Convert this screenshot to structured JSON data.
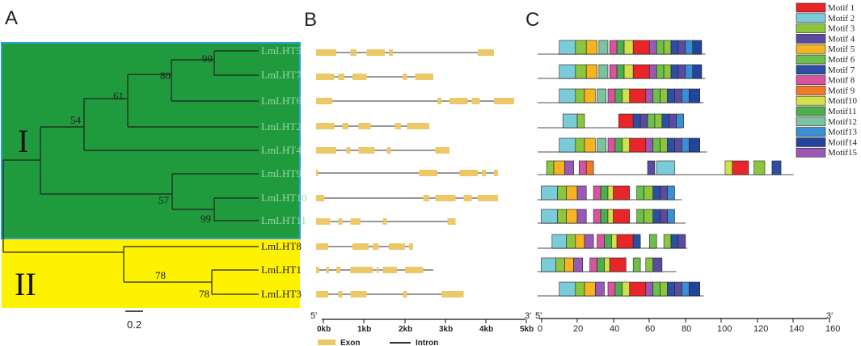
{
  "panels": {
    "a": "A",
    "b": "B",
    "c": "C"
  },
  "clades": {
    "one": "I",
    "two": "II"
  },
  "colors": {
    "clade1": "#1f9a3c",
    "clade1_border": "#2aa0d8",
    "clade2": "#fff200",
    "exon": "#ecc867",
    "intron": "#777777"
  },
  "genes": [
    "LmLHT5",
    "LmLHT7",
    "LmLHT6",
    "LmLHT2",
    "LmLHT4",
    "LmLHT9",
    "LmLHT10",
    "LmLHT11",
    "LmLHT8",
    "LmLHT1",
    "LmLHT3"
  ],
  "bootstrap": [
    "99",
    "80",
    "61",
    "54",
    "57",
    "99",
    "78",
    "78"
  ],
  "scale_bar": "0.2",
  "gene_structure": {
    "axis_ticks": [
      "0kb",
      "1kb",
      "2kb",
      "3kb",
      "4kb",
      "5kb"
    ],
    "axis_start": "5'",
    "axis_end": "3'",
    "legend_exon": "Exon",
    "legend_intron": "Intron",
    "units": "kb",
    "structures": [
      {
        "length": 4.4,
        "exons": [
          [
            0,
            0.5
          ],
          [
            0.85,
            1.0
          ],
          [
            1.25,
            1.7
          ],
          [
            1.8,
            1.9
          ],
          [
            4.0,
            4.4
          ]
        ]
      },
      {
        "length": 2.9,
        "exons": [
          [
            0,
            0.45
          ],
          [
            0.55,
            0.7
          ],
          [
            0.9,
            1.25
          ],
          [
            2.15,
            2.25
          ],
          [
            2.45,
            2.9
          ]
        ]
      },
      {
        "length": 4.9,
        "exons": [
          [
            0,
            0.4
          ],
          [
            3.0,
            3.1
          ],
          [
            3.3,
            3.75
          ],
          [
            3.85,
            4.05
          ],
          [
            4.4,
            4.9
          ]
        ]
      },
      {
        "length": 2.8,
        "exons": [
          [
            0,
            0.45
          ],
          [
            0.65,
            0.8
          ],
          [
            1.05,
            1.35
          ],
          [
            1.95,
            2.1
          ],
          [
            2.25,
            2.8
          ]
        ]
      },
      {
        "length": 3.3,
        "exons": [
          [
            0,
            0.5
          ],
          [
            0.75,
            0.85
          ],
          [
            1.05,
            1.45
          ],
          [
            1.75,
            1.85
          ],
          [
            2.95,
            3.3
          ]
        ]
      },
      {
        "length": 4.5,
        "exons": [
          [
            0,
            0.05
          ],
          [
            2.55,
            3.0
          ],
          [
            3.55,
            4.0
          ],
          [
            4.1,
            4.2
          ],
          [
            4.4,
            4.5
          ]
        ]
      },
      {
        "length": 4.5,
        "exons": [
          [
            0,
            0.2
          ],
          [
            2.65,
            2.8
          ],
          [
            2.95,
            3.45
          ],
          [
            3.65,
            3.85
          ],
          [
            4.0,
            4.5
          ]
        ]
      },
      {
        "length": 3.45,
        "exons": [
          [
            0,
            0.35
          ],
          [
            0.55,
            0.65
          ],
          [
            0.85,
            1.1
          ],
          [
            1.65,
            1.75
          ],
          [
            3.25,
            3.45
          ]
        ]
      },
      {
        "length": 2.4,
        "exons": [
          [
            0,
            0.3
          ],
          [
            0.9,
            1.3
          ],
          [
            1.4,
            1.55
          ],
          [
            1.8,
            2.2
          ],
          [
            2.3,
            2.4
          ]
        ]
      },
      {
        "length": 2.9,
        "exons": [
          [
            0,
            0.08
          ],
          [
            0.25,
            0.32
          ],
          [
            0.5,
            0.6
          ],
          [
            0.85,
            1.4
          ],
          [
            1.5,
            1.55
          ],
          [
            1.65,
            2.0
          ],
          [
            2.2,
            2.65
          ]
        ]
      },
      {
        "length": 3.65,
        "exons": [
          [
            0,
            0.3
          ],
          [
            0.55,
            0.65
          ],
          [
            0.85,
            1.25
          ],
          [
            2.15,
            2.25
          ],
          [
            3.1,
            3.65
          ]
        ]
      }
    ]
  },
  "motif_analysis": {
    "axis_ticks": [
      "0",
      "20",
      "40",
      "60",
      "80",
      "100",
      "120",
      "140",
      "160"
    ],
    "axis_start": "5'",
    "axis_end": "3'",
    "motifs": [
      {
        "name": "Motif 1",
        "color": "#e8262a"
      },
      {
        "name": "Motif 2",
        "color": "#79ccd8"
      },
      {
        "name": "Motif 3",
        "color": "#8cc63e"
      },
      {
        "name": "Motif 4",
        "color": "#5b4aa0"
      },
      {
        "name": "Motif 5",
        "color": "#f6b420"
      },
      {
        "name": "Motif 6",
        "color": "#6cbf4a"
      },
      {
        "name": "Motif 7",
        "color": "#2c4fa3"
      },
      {
        "name": "Motif 8",
        "color": "#d9539e"
      },
      {
        "name": "Motif 9",
        "color": "#f07a26"
      },
      {
        "name": "Motif10",
        "color": "#d4e04a"
      },
      {
        "name": "Motif11",
        "color": "#4cae4c"
      },
      {
        "name": "Motif12",
        "color": "#7bc3a0"
      },
      {
        "name": "Motif13",
        "color": "#3a8fd2"
      },
      {
        "name": "Motif14",
        "color": "#24439a"
      },
      {
        "name": "Motif15",
        "color": "#9b59b6"
      }
    ],
    "sequences": [
      {
        "length": 93,
        "blocks": [
          [
            12,
            21,
            2
          ],
          [
            21,
            27,
            3
          ],
          [
            27,
            33,
            5
          ],
          [
            34,
            39,
            12
          ],
          [
            40,
            44,
            8
          ],
          [
            44,
            48,
            11
          ],
          [
            48,
            53,
            10
          ],
          [
            53,
            62,
            1
          ],
          [
            62,
            66,
            15
          ],
          [
            66,
            70,
            6
          ],
          [
            70,
            74,
            3
          ],
          [
            74,
            78,
            7
          ],
          [
            78,
            82,
            4
          ],
          [
            82,
            86,
            13
          ],
          [
            86,
            91,
            14
          ]
        ]
      },
      {
        "length": 93,
        "blocks": [
          [
            12,
            21,
            2
          ],
          [
            21,
            27,
            3
          ],
          [
            27,
            33,
            5
          ],
          [
            34,
            39,
            12
          ],
          [
            40,
            44,
            8
          ],
          [
            44,
            48,
            11
          ],
          [
            48,
            53,
            10
          ],
          [
            53,
            62,
            1
          ],
          [
            62,
            66,
            15
          ],
          [
            66,
            70,
            6
          ],
          [
            70,
            74,
            3
          ],
          [
            74,
            78,
            7
          ],
          [
            78,
            82,
            4
          ],
          [
            82,
            86,
            13
          ],
          [
            86,
            91,
            14
          ]
        ]
      },
      {
        "length": 92,
        "blocks": [
          [
            12,
            21,
            2
          ],
          [
            21,
            26,
            3
          ],
          [
            26,
            32,
            5
          ],
          [
            33,
            38,
            12
          ],
          [
            39,
            43,
            8
          ],
          [
            43,
            47,
            11
          ],
          [
            47,
            51,
            10
          ],
          [
            51,
            60,
            1
          ],
          [
            60,
            64,
            15
          ],
          [
            64,
            68,
            6
          ],
          [
            68,
            72,
            3
          ],
          [
            72,
            76,
            7
          ],
          [
            76,
            80,
            4
          ],
          [
            80,
            84,
            13
          ],
          [
            84,
            90,
            14
          ]
        ]
      },
      {
        "length": 80,
        "blocks": [
          [
            14,
            22,
            2
          ],
          [
            22,
            26,
            3
          ],
          [
            45,
            53,
            1
          ],
          [
            53,
            57,
            7
          ],
          [
            57,
            61,
            4
          ],
          [
            61,
            65,
            6
          ],
          [
            65,
            69,
            3
          ],
          [
            69,
            73,
            7
          ],
          [
            73,
            77,
            4
          ],
          [
            77,
            81,
            13
          ]
        ]
      },
      {
        "length": 94,
        "blocks": [
          [
            12,
            21,
            2
          ],
          [
            21,
            26,
            3
          ],
          [
            26,
            32,
            5
          ],
          [
            33,
            38,
            12
          ],
          [
            39,
            43,
            8
          ],
          [
            43,
            47,
            11
          ],
          [
            47,
            51,
            10
          ],
          [
            51,
            60,
            1
          ],
          [
            60,
            64,
            15
          ],
          [
            64,
            68,
            6
          ],
          [
            68,
            72,
            3
          ],
          [
            72,
            76,
            7
          ],
          [
            76,
            80,
            4
          ],
          [
            80,
            84,
            13
          ],
          [
            84,
            90,
            14
          ]
        ]
      },
      {
        "length": 142,
        "blocks": [
          [
            5,
            9,
            3
          ],
          [
            9,
            15,
            5
          ],
          [
            15,
            20,
            15
          ],
          [
            23,
            27,
            8
          ],
          [
            27,
            31,
            9
          ],
          [
            61,
            65,
            4
          ],
          [
            66,
            76,
            2
          ],
          [
            104,
            108,
            10
          ],
          [
            108,
            117,
            1
          ],
          [
            120,
            126,
            3
          ],
          [
            130,
            135,
            7
          ]
        ]
      },
      {
        "length": 80,
        "blocks": [
          [
            2,
            11,
            2
          ],
          [
            11,
            16,
            3
          ],
          [
            16,
            22,
            5
          ],
          [
            22,
            27,
            15
          ],
          [
            31,
            35,
            8
          ],
          [
            35,
            39,
            11
          ],
          [
            39,
            42,
            10
          ],
          [
            42,
            51,
            1
          ],
          [
            55,
            59,
            6
          ],
          [
            59,
            64,
            3
          ],
          [
            64,
            68,
            7
          ],
          [
            68,
            72,
            4
          ],
          [
            72,
            76,
            13
          ]
        ]
      },
      {
        "length": 82,
        "blocks": [
          [
            2,
            11,
            2
          ],
          [
            11,
            16,
            3
          ],
          [
            16,
            22,
            5
          ],
          [
            22,
            27,
            15
          ],
          [
            31,
            35,
            8
          ],
          [
            35,
            39,
            11
          ],
          [
            39,
            42,
            10
          ],
          [
            42,
            51,
            1
          ],
          [
            55,
            59,
            6
          ],
          [
            59,
            64,
            3
          ],
          [
            64,
            68,
            7
          ],
          [
            68,
            72,
            4
          ],
          [
            72,
            76,
            13
          ]
        ]
      },
      {
        "length": 83,
        "blocks": [
          [
            8,
            16,
            2
          ],
          [
            16,
            21,
            3
          ],
          [
            21,
            26,
            5
          ],
          [
            26,
            31,
            15
          ],
          [
            33,
            37,
            8
          ],
          [
            37,
            41,
            11
          ],
          [
            41,
            44,
            10
          ],
          [
            44,
            53,
            1
          ],
          [
            53,
            57,
            7
          ],
          [
            62,
            66,
            6
          ],
          [
            70,
            74,
            3
          ],
          [
            74,
            78,
            7
          ],
          [
            78,
            82,
            4
          ]
        ]
      },
      {
        "length": 77,
        "blocks": [
          [
            2,
            10,
            2
          ],
          [
            10,
            15,
            3
          ],
          [
            15,
            20,
            5
          ],
          [
            20,
            25,
            15
          ],
          [
            29,
            33,
            8
          ],
          [
            33,
            37,
            11
          ],
          [
            37,
            40,
            10
          ],
          [
            40,
            49,
            1
          ],
          [
            53,
            57,
            6
          ],
          [
            60,
            64,
            3
          ],
          [
            64,
            69,
            4
          ]
        ]
      },
      {
        "length": 92,
        "blocks": [
          [
            12,
            21,
            2
          ],
          [
            21,
            26,
            3
          ],
          [
            26,
            32,
            5
          ],
          [
            32,
            37,
            15
          ],
          [
            39,
            43,
            8
          ],
          [
            43,
            47,
            11
          ],
          [
            47,
            51,
            10
          ],
          [
            51,
            60,
            1
          ],
          [
            60,
            64,
            15
          ],
          [
            64,
            68,
            6
          ],
          [
            68,
            72,
            3
          ],
          [
            72,
            76,
            7
          ],
          [
            76,
            80,
            4
          ],
          [
            80,
            84,
            13
          ],
          [
            84,
            90,
            14
          ]
        ]
      }
    ]
  }
}
